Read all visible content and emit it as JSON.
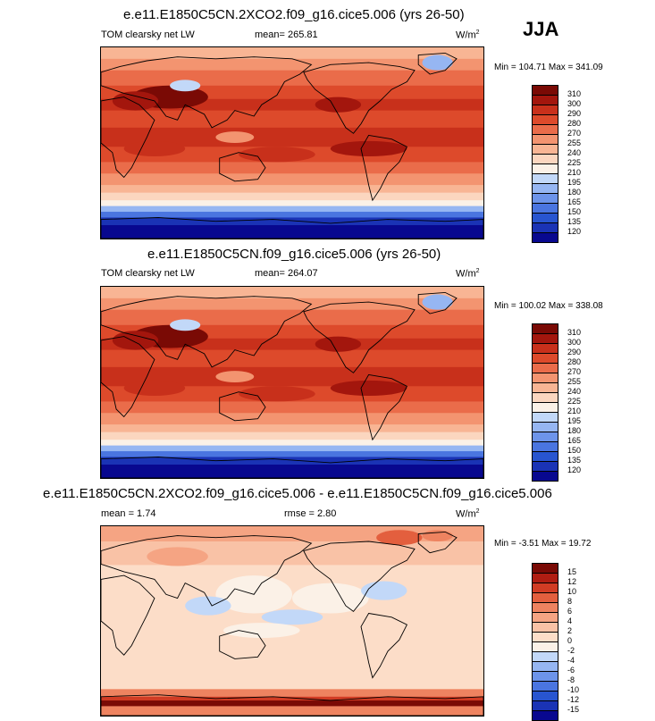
{
  "season": "JJA",
  "colors": {
    "seq": [
      "#08088f",
      "#1a33b5",
      "#2855d0",
      "#4a75e0",
      "#6d94ea",
      "#96b6f2",
      "#c2d8f8",
      "#fbf1e7",
      "#fbd6bf",
      "#f8b594",
      "#f39470",
      "#ea6c4a",
      "#dd4a2b",
      "#c8301b",
      "#a3160d",
      "#7a0a05"
    ],
    "diff": [
      "#08088f",
      "#1a33b5",
      "#2855d0",
      "#4a75e0",
      "#6d94ea",
      "#96b6f2",
      "#c2d8f8",
      "#fbf1e7",
      "#fcddc8",
      "#f9c2a6",
      "#f5a483",
      "#ee8360",
      "#e35f3e",
      "#d13c24",
      "#b01d12",
      "#7a0a05"
    ]
  },
  "panels": [
    {
      "title": "e.e11.E1850C5CN.2XCO2.f09_g16.cice5.006 (yrs 26-50)",
      "variable": "TOM clearsky net LW",
      "mean_label": "mean= 265.81",
      "units": "W/m",
      "units_exp": "2",
      "minmax": "Min = 104.71 Max = 341.09",
      "levels": [
        "310",
        "300",
        "290",
        "280",
        "270",
        "255",
        "240",
        "225",
        "210",
        "195",
        "180",
        "165",
        "150",
        "135",
        "120"
      ],
      "palette": "seq",
      "kind": "field"
    },
    {
      "title": "e.e11.E1850C5CN.f09_g16.cice5.006 (yrs 26-50)",
      "variable": "TOM clearsky net LW",
      "mean_label": "mean= 264.07",
      "units": "W/m",
      "units_exp": "2",
      "minmax": "Min = 100.02 Max = 338.08",
      "levels": [
        "310",
        "300",
        "290",
        "280",
        "270",
        "255",
        "240",
        "225",
        "210",
        "195",
        "180",
        "165",
        "150",
        "135",
        "120"
      ],
      "palette": "seq",
      "kind": "field"
    },
    {
      "title": "e.e11.E1850C5CN.2XCO2.f09_g16.cice5.006 - e.e11.E1850C5CN.f09_g16.cice5.006",
      "mean_label": "mean =   1.74",
      "rmse_label": "rmse =   2.80",
      "units": "W/m",
      "units_exp": "2",
      "minmax": "Min = -3.51 Max = 19.72",
      "levels": [
        "15",
        "12",
        "10",
        "8",
        "6",
        "4",
        "2",
        "0",
        "-2",
        "-4",
        "-6",
        "-8",
        "-10",
        "-12",
        "-15"
      ],
      "palette": "diff",
      "kind": "diff"
    }
  ]
}
